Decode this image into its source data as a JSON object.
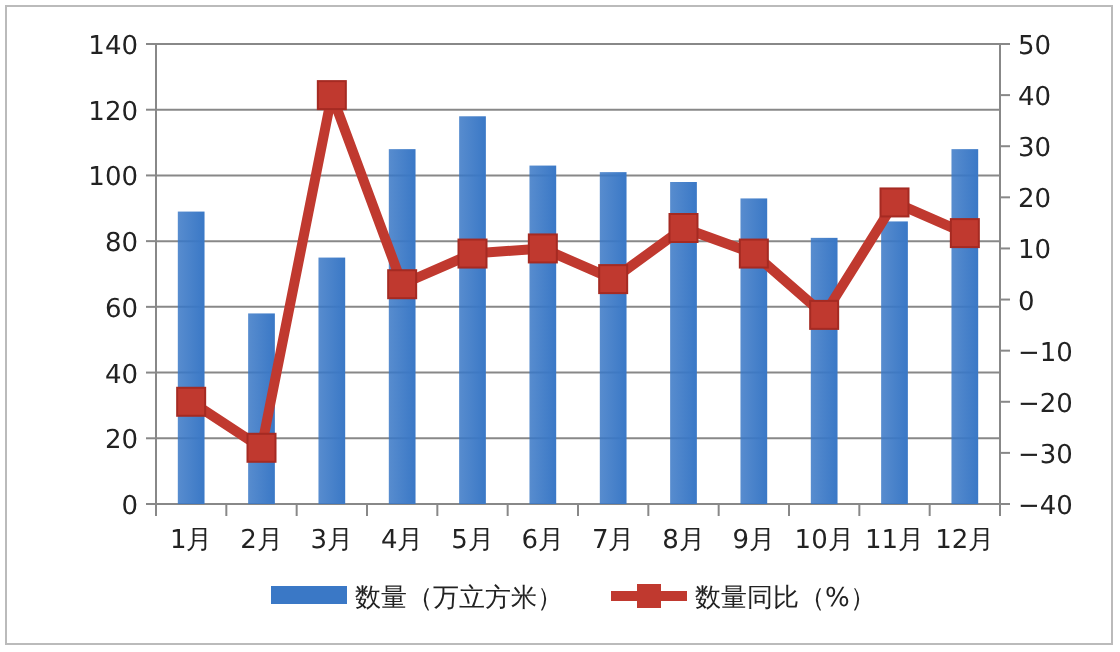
{
  "chart_data": {
    "type": "bar",
    "categories": [
      "1月",
      "2月",
      "3月",
      "4月",
      "5月",
      "6月",
      "7月",
      "8月",
      "9月",
      "10月",
      "11月",
      "12月"
    ],
    "series": [
      {
        "name": "数量（万立方米）",
        "color": "#3a78c6",
        "values": [
          89,
          58,
          75,
          108,
          118,
          103,
          101,
          98,
          93,
          81,
          86,
          108
        ]
      },
      {
        "name": "数量同比（%）",
        "type": "line",
        "axis": "y2",
        "color": "#c0392f",
        "marker": "square",
        "values": [
          -20,
          -29,
          40,
          3,
          9,
          10,
          4,
          14,
          9,
          -3,
          19,
          13
        ]
      }
    ],
    "ylim": [
      0,
      140
    ],
    "yticks": [
      0,
      20,
      40,
      60,
      80,
      100,
      120,
      140
    ],
    "y2lim": [
      -40,
      50
    ],
    "y2ticks": [
      -40,
      -30,
      -20,
      -10,
      0,
      10,
      20,
      30,
      40,
      50
    ],
    "grid": "y",
    "legend": "bottom"
  }
}
